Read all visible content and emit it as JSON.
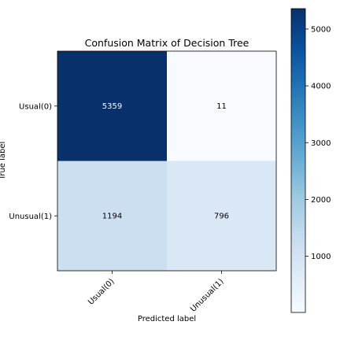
{
  "chart_data": {
    "type": "heatmap",
    "title": "Confusion Matrix of Decision Tree",
    "xlabel": "Predicted label",
    "ylabel": "True label",
    "x_categories": [
      "Usual(0)",
      "Unusual(1)"
    ],
    "y_categories": [
      "Usual(0)",
      "Unusual(1)"
    ],
    "values": [
      [
        5359,
        11
      ],
      [
        1194,
        796
      ]
    ],
    "colormap": "Blues",
    "colorbar": {
      "min": 11,
      "max": 5359,
      "ticks": [
        1000,
        2000,
        3000,
        4000,
        5000
      ],
      "tick_labels": [
        "1000",
        "2000",
        "3000",
        "4000",
        "5000"
      ]
    },
    "grid": false,
    "colors": {
      "low": "#f7fbff",
      "high": "#08306b",
      "text_on_dark": "#ffffff",
      "text_on_light": "#000000"
    }
  }
}
